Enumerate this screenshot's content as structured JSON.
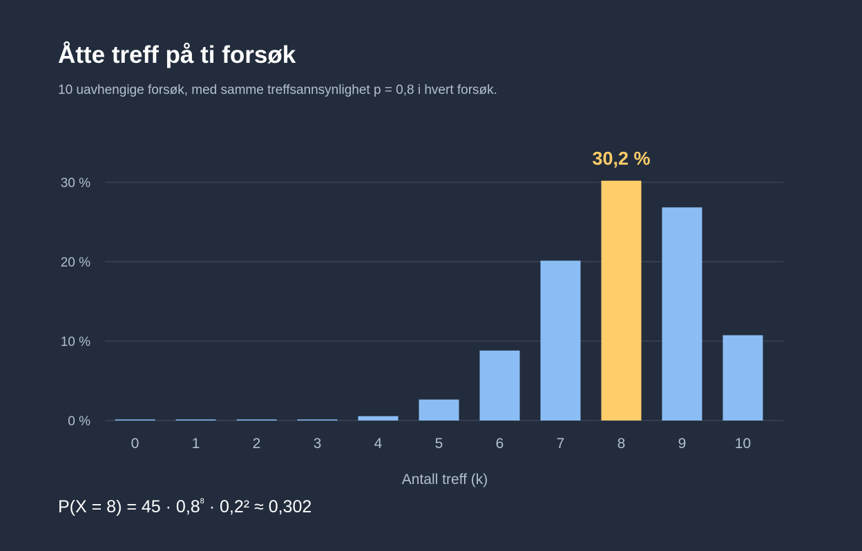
{
  "title": "Åtte treff på ti forsøk",
  "subtitle": "10 uavhengige forsøk, med samme treffsannsynlighet p = 0,8 i hvert forsøk.",
  "formula": {
    "part1": "P(X = 8) = 45 · 0,8",
    "exp1": "8",
    "part2": " · 0,2² ≈ 0,302"
  },
  "colors": {
    "background": "#222c3c",
    "bar": "#8bbdf4",
    "highlight": "#ffcd69",
    "grid": "#3a4556",
    "tick_text": "#b4bfcd"
  },
  "chart_data": {
    "type": "bar",
    "title": "",
    "xlabel": "Antall treff (k)",
    "ylabel": "",
    "categories": [
      "0",
      "1",
      "2",
      "3",
      "4",
      "5",
      "6",
      "7",
      "8",
      "9",
      "10"
    ],
    "values": [
      1e-07,
      4e-06,
      7e-05,
      0.0008,
      0.55,
      2.64,
      8.81,
      20.13,
      30.2,
      26.84,
      10.74
    ],
    "ylim": [
      0,
      30
    ],
    "yticks": [
      0,
      10,
      20,
      30
    ],
    "ytick_labels": [
      "0 %",
      "10 %",
      "20 %",
      "30 %"
    ],
    "grid": true,
    "highlight_index": 8,
    "highlight_label": "30,2 %"
  }
}
